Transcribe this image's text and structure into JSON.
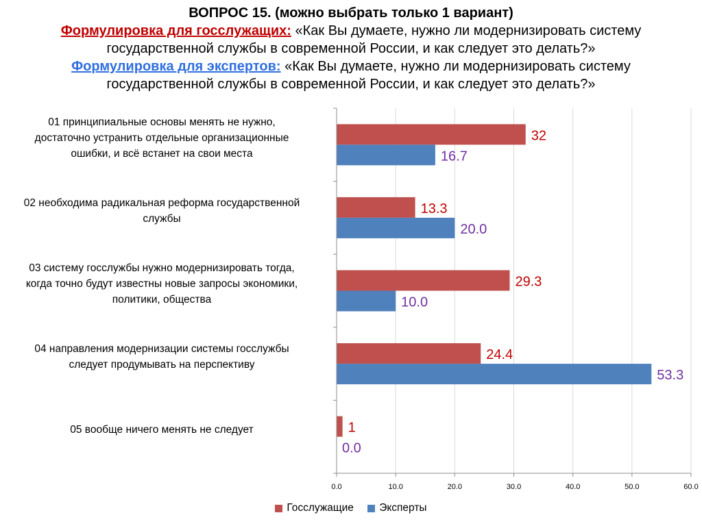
{
  "header": {
    "question": "ВОПРОС 15. (можно выбрать только 1 вариант)",
    "civil_label": "Формулировка для госслужащих:",
    "civil_text_1": "«Как Вы думаете, нужно ли модернизировать систему",
    "civil_text_2": "государственной службы в современной России, и как следует это делать?»",
    "expert_label": "Формулировка для экспертов:",
    "expert_text_1": "«Как Вы думаете, нужно ли модернизировать систему",
    "expert_text_2": "государственной службы в современной России, и как следует это делать?»"
  },
  "colors": {
    "civil": "#c0504d",
    "experts": "#4f81bd",
    "civil_label": "#c00000",
    "experts_label": "#7030a0"
  },
  "chart_data": {
    "type": "bar",
    "orientation": "horizontal",
    "categories": [
      [
        "01  принципиальные основы менять не нужно,",
        "достаточно устранить отдельные организационные",
        "ошибки, и всё встанет на свои места"
      ],
      [
        "02  необходима радикальная реформа государственной",
        "службы"
      ],
      [
        "03  систему госслужбы нужно модернизировать тогда,",
        "когда точно будут известны новые запросы экономики,",
        "политики, общества"
      ],
      [
        "04  направления модернизации системы госслужбы",
        "следует продумывать на перспективу"
      ],
      [
        "05  вообще ничего менять не следует"
      ]
    ],
    "series": [
      {
        "name": "Госслужащие",
        "values": [
          32,
          13.3,
          29.3,
          24.4,
          1
        ],
        "labels": [
          "32",
          "13.3",
          "29.3",
          "24.4",
          "1"
        ]
      },
      {
        "name": "Эксперты",
        "values": [
          16.7,
          20.0,
          10.0,
          53.3,
          0.0
        ],
        "labels": [
          "16.7",
          "20.0",
          "10.0",
          "53.3",
          "0.0"
        ]
      }
    ],
    "xlim": [
      0,
      60
    ],
    "xticks": [
      "0.0",
      "10.0",
      "20.0",
      "30.0",
      "40.0",
      "50.0",
      "60.0"
    ],
    "grid": true,
    "legend_position": "bottom"
  }
}
